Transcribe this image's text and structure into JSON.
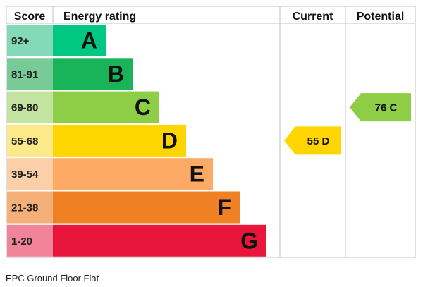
{
  "chart_data": {
    "type": "table",
    "title": "",
    "columns": {
      "score": "Score",
      "rating": "Energy rating",
      "current": "Current",
      "potential": "Potential"
    },
    "bands": [
      {
        "score": "92+",
        "letter": "A",
        "color": "#00c781",
        "score_bg": "#83d9b8"
      },
      {
        "score": "81-91",
        "letter": "B",
        "color": "#19b459",
        "score_bg": "#78cb96"
      },
      {
        "score": "69-80",
        "letter": "C",
        "color": "#8dce46",
        "score_bg": "#c2e4a0"
      },
      {
        "score": "55-68",
        "letter": "D",
        "color": "#ffd500",
        "score_bg": "#fde98a"
      },
      {
        "score": "39-54",
        "letter": "E",
        "color": "#fcaa65",
        "score_bg": "#fdcfa8"
      },
      {
        "score": "21-38",
        "letter": "F",
        "color": "#ef8023",
        "score_bg": "#f5b07a"
      },
      {
        "score": "1-20",
        "letter": "G",
        "color": "#e9153b",
        "score_bg": "#f28499"
      }
    ],
    "current": {
      "value": 55,
      "letter": "D",
      "label": "55 D",
      "color": "#ffd500"
    },
    "potential": {
      "value": 76,
      "letter": "C",
      "label": "76 C",
      "color": "#8dce46"
    }
  },
  "caption": "EPC Ground Floor Flat"
}
